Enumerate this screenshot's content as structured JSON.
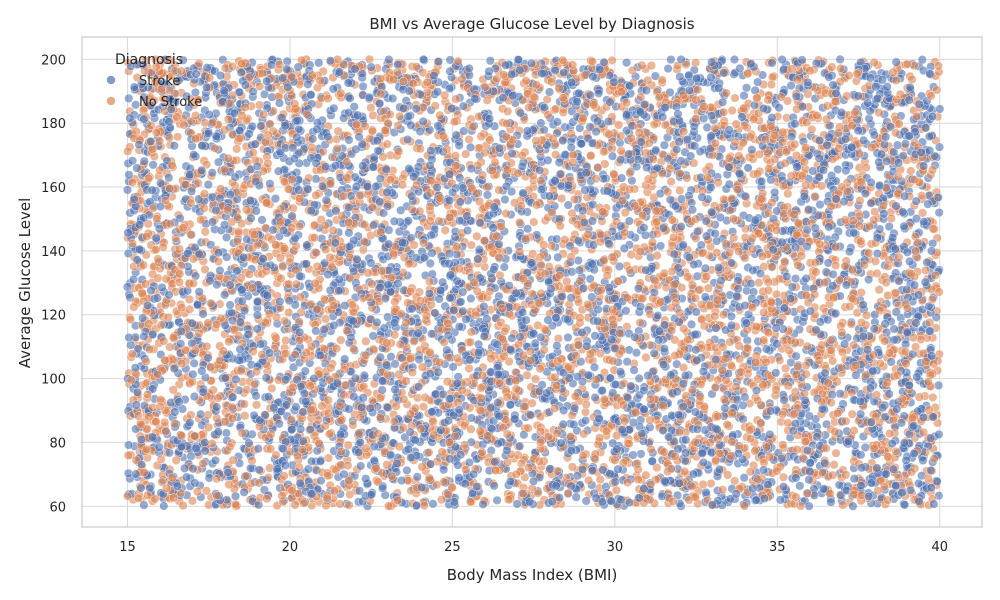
{
  "chart_data": {
    "type": "scatter",
    "title": "BMI vs Average Glucose Level by Diagnosis",
    "xlabel": "Body Mass Index (BMI)",
    "ylabel": "Average Glucose Level",
    "xlim": [
      13.6,
      41.3
    ],
    "ylim": [
      53.5,
      207.0
    ],
    "xticks": [
      15,
      20,
      25,
      30,
      35,
      40
    ],
    "yticks": [
      60,
      80,
      100,
      120,
      140,
      160,
      180,
      200
    ],
    "grid": true,
    "legend": {
      "title": "Diagnosis",
      "placement": "top-left"
    },
    "series": [
      {
        "name": "Stroke",
        "color": "#4c72b0",
        "x": [
          15.2,
          16.1,
          17.4,
          18.0,
          18.9,
          19.6,
          20.3,
          21.1,
          21.8,
          22.6,
          23.4,
          24.1,
          24.9,
          25.7,
          26.3,
          27.2,
          28.0,
          28.8,
          29.5,
          30.2,
          31.1,
          31.8,
          32.6,
          33.4,
          34.1,
          34.9,
          35.6,
          36.4,
          37.2,
          38.0,
          38.7,
          39.5,
          15.8,
          17.0,
          19.1,
          21.4,
          23.0,
          25.2,
          27.6,
          29.9,
          32.1,
          34.5,
          36.8,
          39.1,
          16.5,
          20.8,
          24.6,
          28.4,
          33.0,
          37.5
        ],
        "y": [
          155,
          72,
          188,
          130,
          96,
          170,
          64,
          142,
          118,
          193,
          84,
          160,
          108,
          76,
          135,
          182,
          66,
          150,
          124,
          98,
          176,
          88,
          140,
          62,
          166,
          112,
          195,
          80,
          148,
          120,
          70,
          186,
          102,
          164,
          128,
          90,
          178,
          68,
          144,
          116,
          190,
          86,
          158,
          132,
          110,
          74,
          172,
          94,
          138,
          198
        ]
      },
      {
        "name": "No Stroke",
        "color": "#dd8452",
        "x": [
          15.5,
          16.7,
          17.8,
          18.5,
          19.3,
          20.0,
          20.9,
          21.6,
          22.3,
          23.1,
          23.8,
          24.5,
          25.4,
          26.0,
          26.9,
          27.7,
          28.5,
          29.2,
          30.0,
          30.7,
          31.5,
          32.3,
          33.1,
          33.8,
          34.6,
          35.3,
          36.1,
          36.9,
          37.7,
          38.4,
          39.2,
          39.8,
          16.2,
          18.3,
          20.5,
          22.8,
          24.3,
          26.6,
          28.9,
          31.3,
          33.6,
          35.9,
          38.2,
          39.6,
          17.2,
          21.9,
          25.9,
          30.5,
          34.8,
          38.9
        ],
        "y": [
          68,
          162,
          104,
          184,
          78,
          146,
          122,
          92,
          174,
          60,
          136,
          196,
          86,
          152,
          114,
          70,
          168,
          100,
          190,
          82,
          132,
          156,
          74,
          178,
          106,
          140,
          64,
          170,
          94,
          126,
          184,
          78,
          148,
          116,
          200,
          88,
          162,
          72,
          128,
          180,
          96,
          144,
          62,
          160,
          110,
          154,
          82,
          170,
          124,
          92
        ]
      }
    ]
  }
}
